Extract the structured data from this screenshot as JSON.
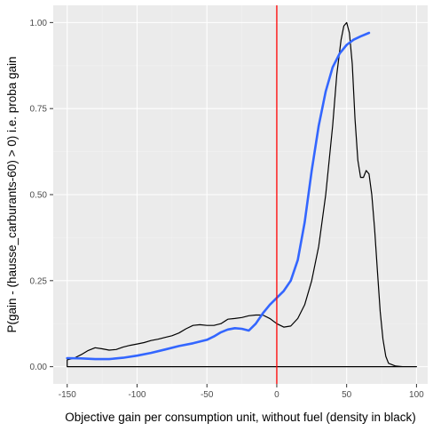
{
  "chart_data": {
    "type": "line",
    "xlabel": "Objective gain per consumption unit, without fuel (density in black)",
    "ylabel": "P(gain - (hausse_carburants-60) > 0) i.e. proba gain",
    "xlim": [
      -160,
      108
    ],
    "ylim": [
      -0.05,
      1.05
    ],
    "x_ticks": [
      -150,
      -100,
      -50,
      0,
      50,
      100
    ],
    "x_tick_labels": [
      "-150",
      "-100",
      "-50",
      "0",
      "50",
      "100"
    ],
    "y_ticks": [
      0,
      0.25,
      0.5,
      0.75,
      1
    ],
    "y_tick_labels": [
      "0.00",
      "0.25",
      "0.50",
      "0.75",
      "1.00"
    ],
    "grid": true,
    "vline": {
      "x": 0,
      "color": "#ff0000"
    },
    "series": [
      {
        "role": "probability",
        "color": "#3366ff",
        "x": [
          -150,
          -140,
          -130,
          -120,
          -110,
          -100,
          -90,
          -80,
          -70,
          -60,
          -50,
          -45,
          -40,
          -35,
          -30,
          -25,
          -20,
          -15,
          -10,
          -5,
          0,
          5,
          10,
          15,
          20,
          25,
          30,
          35,
          40,
          45,
          50,
          55,
          60,
          66
        ],
        "y": [
          0.025,
          0.024,
          0.022,
          0.022,
          0.026,
          0.032,
          0.04,
          0.05,
          0.06,
          0.068,
          0.078,
          0.088,
          0.1,
          0.108,
          0.112,
          0.11,
          0.105,
          0.125,
          0.155,
          0.18,
          0.2,
          0.22,
          0.25,
          0.31,
          0.42,
          0.57,
          0.7,
          0.8,
          0.87,
          0.91,
          0.935,
          0.95,
          0.96,
          0.97
        ]
      },
      {
        "role": "density",
        "color": "#000000",
        "x": [
          -150,
          -145,
          -140,
          -135,
          -130,
          -125,
          -120,
          -115,
          -110,
          -105,
          -100,
          -95,
          -90,
          -85,
          -80,
          -75,
          -70,
          -65,
          -60,
          -55,
          -50,
          -45,
          -40,
          -35,
          -30,
          -25,
          -20,
          -15,
          -10,
          -5,
          0,
          5,
          10,
          15,
          20,
          25,
          30,
          35,
          40,
          43,
          46,
          48,
          50,
          52,
          54,
          56,
          58,
          60,
          62,
          64,
          66,
          68,
          70,
          72,
          74,
          76,
          78,
          80,
          85,
          90,
          95,
          100
        ],
        "y": [
          0.02,
          0.025,
          0.035,
          0.047,
          0.055,
          0.052,
          0.048,
          0.05,
          0.057,
          0.062,
          0.066,
          0.07,
          0.076,
          0.08,
          0.085,
          0.09,
          0.098,
          0.11,
          0.12,
          0.122,
          0.12,
          0.12,
          0.125,
          0.138,
          0.14,
          0.143,
          0.148,
          0.15,
          0.15,
          0.14,
          0.125,
          0.115,
          0.118,
          0.14,
          0.18,
          0.25,
          0.35,
          0.5,
          0.7,
          0.85,
          0.95,
          0.99,
          1.0,
          0.97,
          0.88,
          0.72,
          0.6,
          0.55,
          0.55,
          0.57,
          0.56,
          0.5,
          0.4,
          0.28,
          0.16,
          0.08,
          0.03,
          0.01,
          0.002,
          0.0,
          0.0,
          0.0
        ]
      }
    ]
  }
}
